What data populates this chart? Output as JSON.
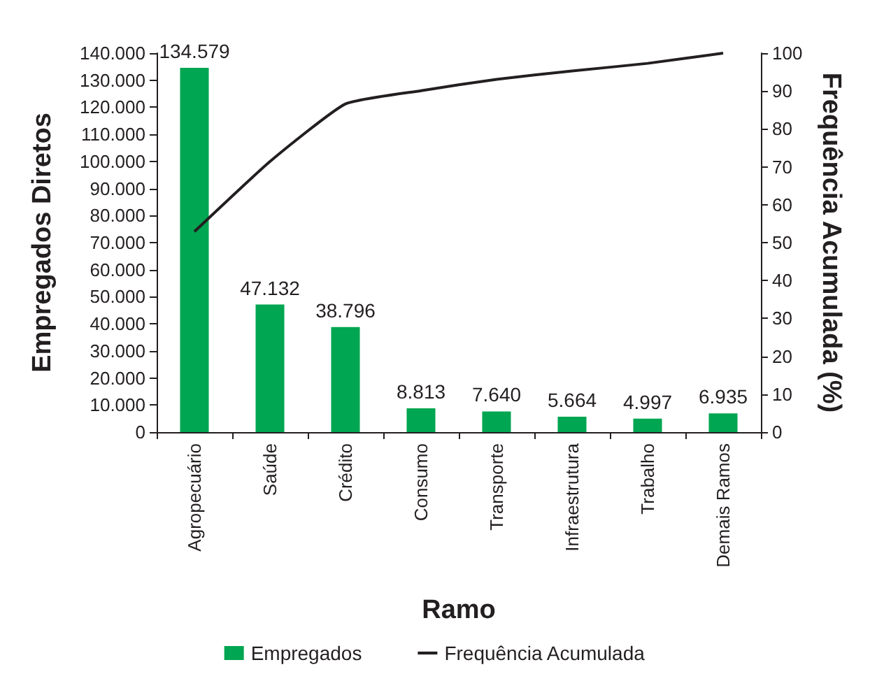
{
  "chart_data": {
    "type": "bar",
    "xlabel": "Ramo",
    "ylabel": "Empregados Diretos",
    "y2label": "Frequência Acumulada (%)",
    "categories": [
      "Agropecuário",
      "Saúde",
      "Crédito",
      "Consumo",
      "Transporte",
      "Infraestrutura",
      "Trabalho",
      "Demais Ramos"
    ],
    "series": [
      {
        "name": "Empregados",
        "color": "#00a651",
        "values": [
          134579,
          47132,
          38796,
          8813,
          7640,
          5664,
          4997,
          6935
        ],
        "value_labels": [
          "134.579",
          "47.132",
          "38.796",
          "8.813",
          "7.640",
          "5.664",
          "4.997",
          "6.935"
        ]
      },
      {
        "name": "Frequência Acumulada",
        "type": "line",
        "axis": "y2",
        "color": "#231f20",
        "values": [
          52.9,
          71.4,
          86.6,
          90.1,
          93.1,
          95.3,
          97.3,
          100
        ]
      }
    ],
    "ylim": [
      0,
      140000
    ],
    "yticks": [
      {
        "value": 0,
        "label": "0"
      },
      {
        "value": 10000,
        "label": "10.000"
      },
      {
        "value": 20000,
        "label": "20.000"
      },
      {
        "value": 30000,
        "label": "30.000"
      },
      {
        "value": 40000,
        "label": "40.000"
      },
      {
        "value": 50000,
        "label": "50.000"
      },
      {
        "value": 60000,
        "label": "60.000"
      },
      {
        "value": 70000,
        "label": "70.000"
      },
      {
        "value": 80000,
        "label": "80.000"
      },
      {
        "value": 90000,
        "label": "90.000"
      },
      {
        "value": 100000,
        "label": "100.000"
      },
      {
        "value": 110000,
        "label": "110.000"
      },
      {
        "value": 120000,
        "label": "120.000"
      },
      {
        "value": 130000,
        "label": "130.000"
      },
      {
        "value": 140000,
        "label": "140.000"
      }
    ],
    "y2lim": [
      0,
      100
    ],
    "y2ticks": [
      0,
      10,
      20,
      30,
      40,
      50,
      60,
      70,
      80,
      90,
      100
    ],
    "grid": false,
    "legend": "bottom",
    "marker": "none",
    "line_style": "solid"
  }
}
